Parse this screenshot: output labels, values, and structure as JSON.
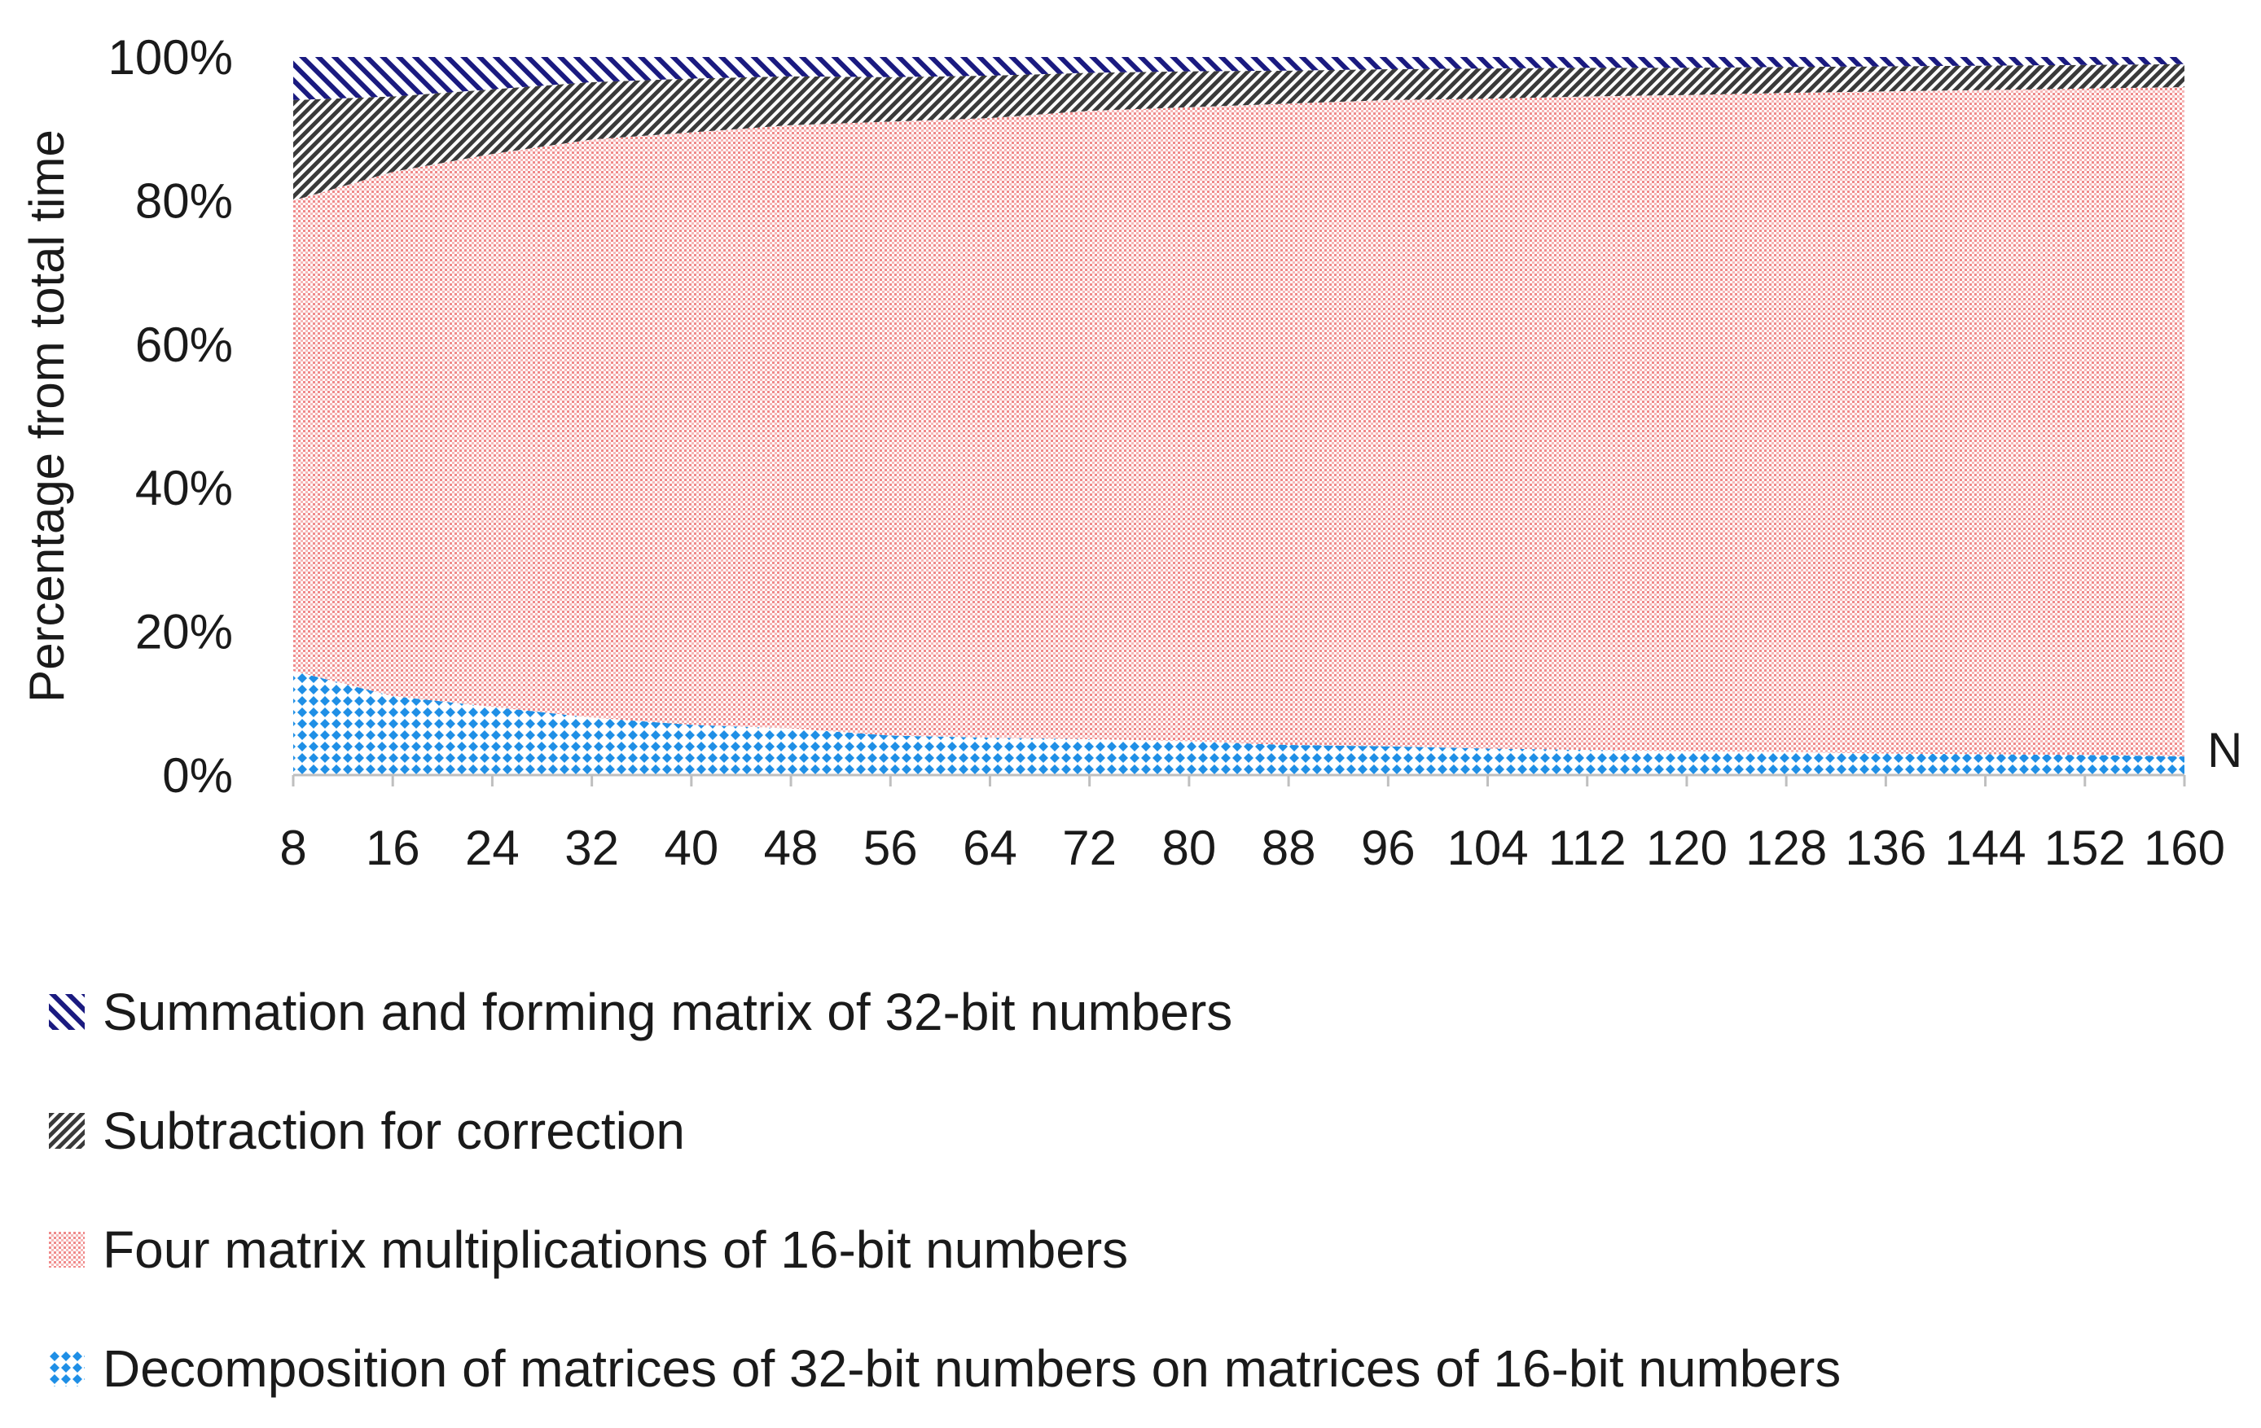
{
  "chart_data": {
    "type": "area",
    "stacked": true,
    "percent": true,
    "title": "",
    "xlabel": "N",
    "ylabel": "Percentage from total time",
    "ylim": [
      0,
      100
    ],
    "y_ticks": [
      "0%",
      "20%",
      "40%",
      "60%",
      "80%",
      "100%"
    ],
    "grid": false,
    "legend_position": "bottom",
    "x": [
      8,
      16,
      24,
      32,
      40,
      48,
      56,
      64,
      72,
      80,
      88,
      96,
      104,
      112,
      120,
      128,
      136,
      144,
      152,
      160
    ],
    "series": [
      {
        "name": "Decomposition of matrices of 32-bit numbers on matrices of 16-bit numbers",
        "color": "#1f8fe6",
        "pattern": "diamond-dots",
        "values": [
          14.5,
          11,
          9.5,
          8,
          7,
          6.5,
          5.5,
          5.2,
          5,
          4.7,
          4.2,
          4,
          3.7,
          3.5,
          3.3,
          3.2,
          3,
          2.9,
          2.8,
          2.6
        ]
      },
      {
        "name": "Four matrix multiplications of 16-bit numbers",
        "color": "#f2a3a3",
        "pattern": "fine-dots",
        "values": [
          65.5,
          73,
          77,
          80.5,
          82.5,
          84,
          85.5,
          86.3,
          87.5,
          88.3,
          89.3,
          90,
          90.5,
          91,
          91.4,
          91.8,
          92.2,
          92.5,
          92.8,
          93.2
        ]
      },
      {
        "name": "Subtraction for correction",
        "color": "#3a3a3a",
        "pattern": "diagonal-dense",
        "values": [
          14,
          10.5,
          9,
          8,
          7.5,
          6.8,
          6.2,
          5.9,
          5.3,
          5,
          4.6,
          4.3,
          4.2,
          4,
          3.8,
          3.6,
          3.5,
          3.4,
          3.3,
          3.2
        ]
      },
      {
        "name": "Summation and forming matrix of 32-bit numbers",
        "color": "#1a1a80",
        "pattern": "diagonal-stripes",
        "values": [
          6,
          5.5,
          4.5,
          3.5,
          3,
          2.7,
          2.8,
          2.6,
          2.2,
          2,
          1.9,
          1.7,
          1.6,
          1.5,
          1.5,
          1.4,
          1.3,
          1.2,
          1.1,
          1
        ]
      }
    ]
  }
}
